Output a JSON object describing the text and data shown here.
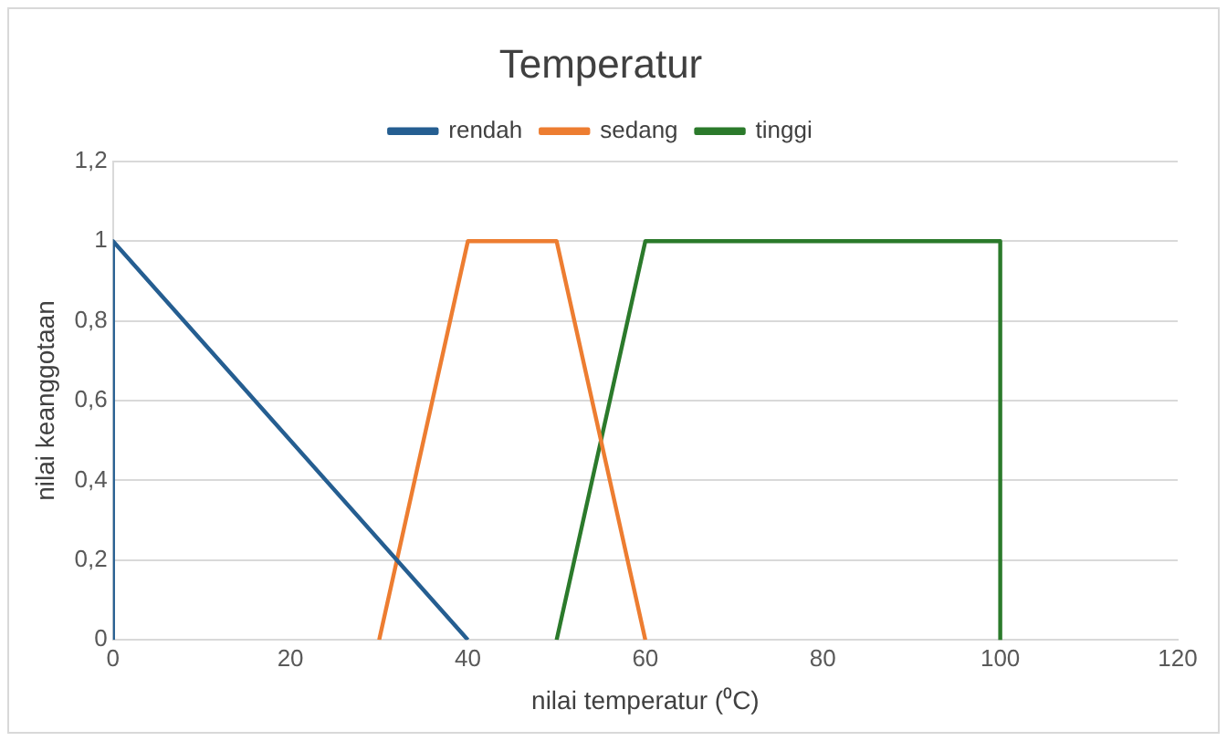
{
  "chart_data": {
    "type": "line",
    "title": "Temperatur",
    "xlabel": "nilai temperatur (⁰C)",
    "ylabel": "nilai keanggotaan",
    "series": [
      {
        "name": "rendah",
        "color": "#255e91",
        "x": [
          0,
          0,
          40
        ],
        "values": [
          0,
          1,
          0
        ]
      },
      {
        "name": "sedang",
        "color": "#ed7d31",
        "x": [
          30,
          40,
          50,
          60
        ],
        "values": [
          0,
          1,
          1,
          0
        ]
      },
      {
        "name": "tinggi",
        "color": "#2b7a2b",
        "x": [
          50,
          60,
          100,
          100
        ],
        "values": [
          0,
          1,
          1,
          0
        ]
      }
    ],
    "xlim": [
      0,
      120
    ],
    "xticks": [
      0,
      20,
      40,
      60,
      80,
      100,
      120
    ],
    "ylim": [
      0,
      1.2
    ],
    "yticks": [
      0,
      {
        "value": 0.2,
        "label": "0,2"
      },
      {
        "value": 0.4,
        "label": "0,4"
      },
      {
        "value": 0.6,
        "label": "0,6"
      },
      {
        "value": 0.8,
        "label": "0,8"
      },
      1,
      {
        "value": 1.2,
        "label": "1,2"
      }
    ],
    "grid": "y",
    "legend": "top",
    "marker": "none",
    "line_style": "solid"
  }
}
